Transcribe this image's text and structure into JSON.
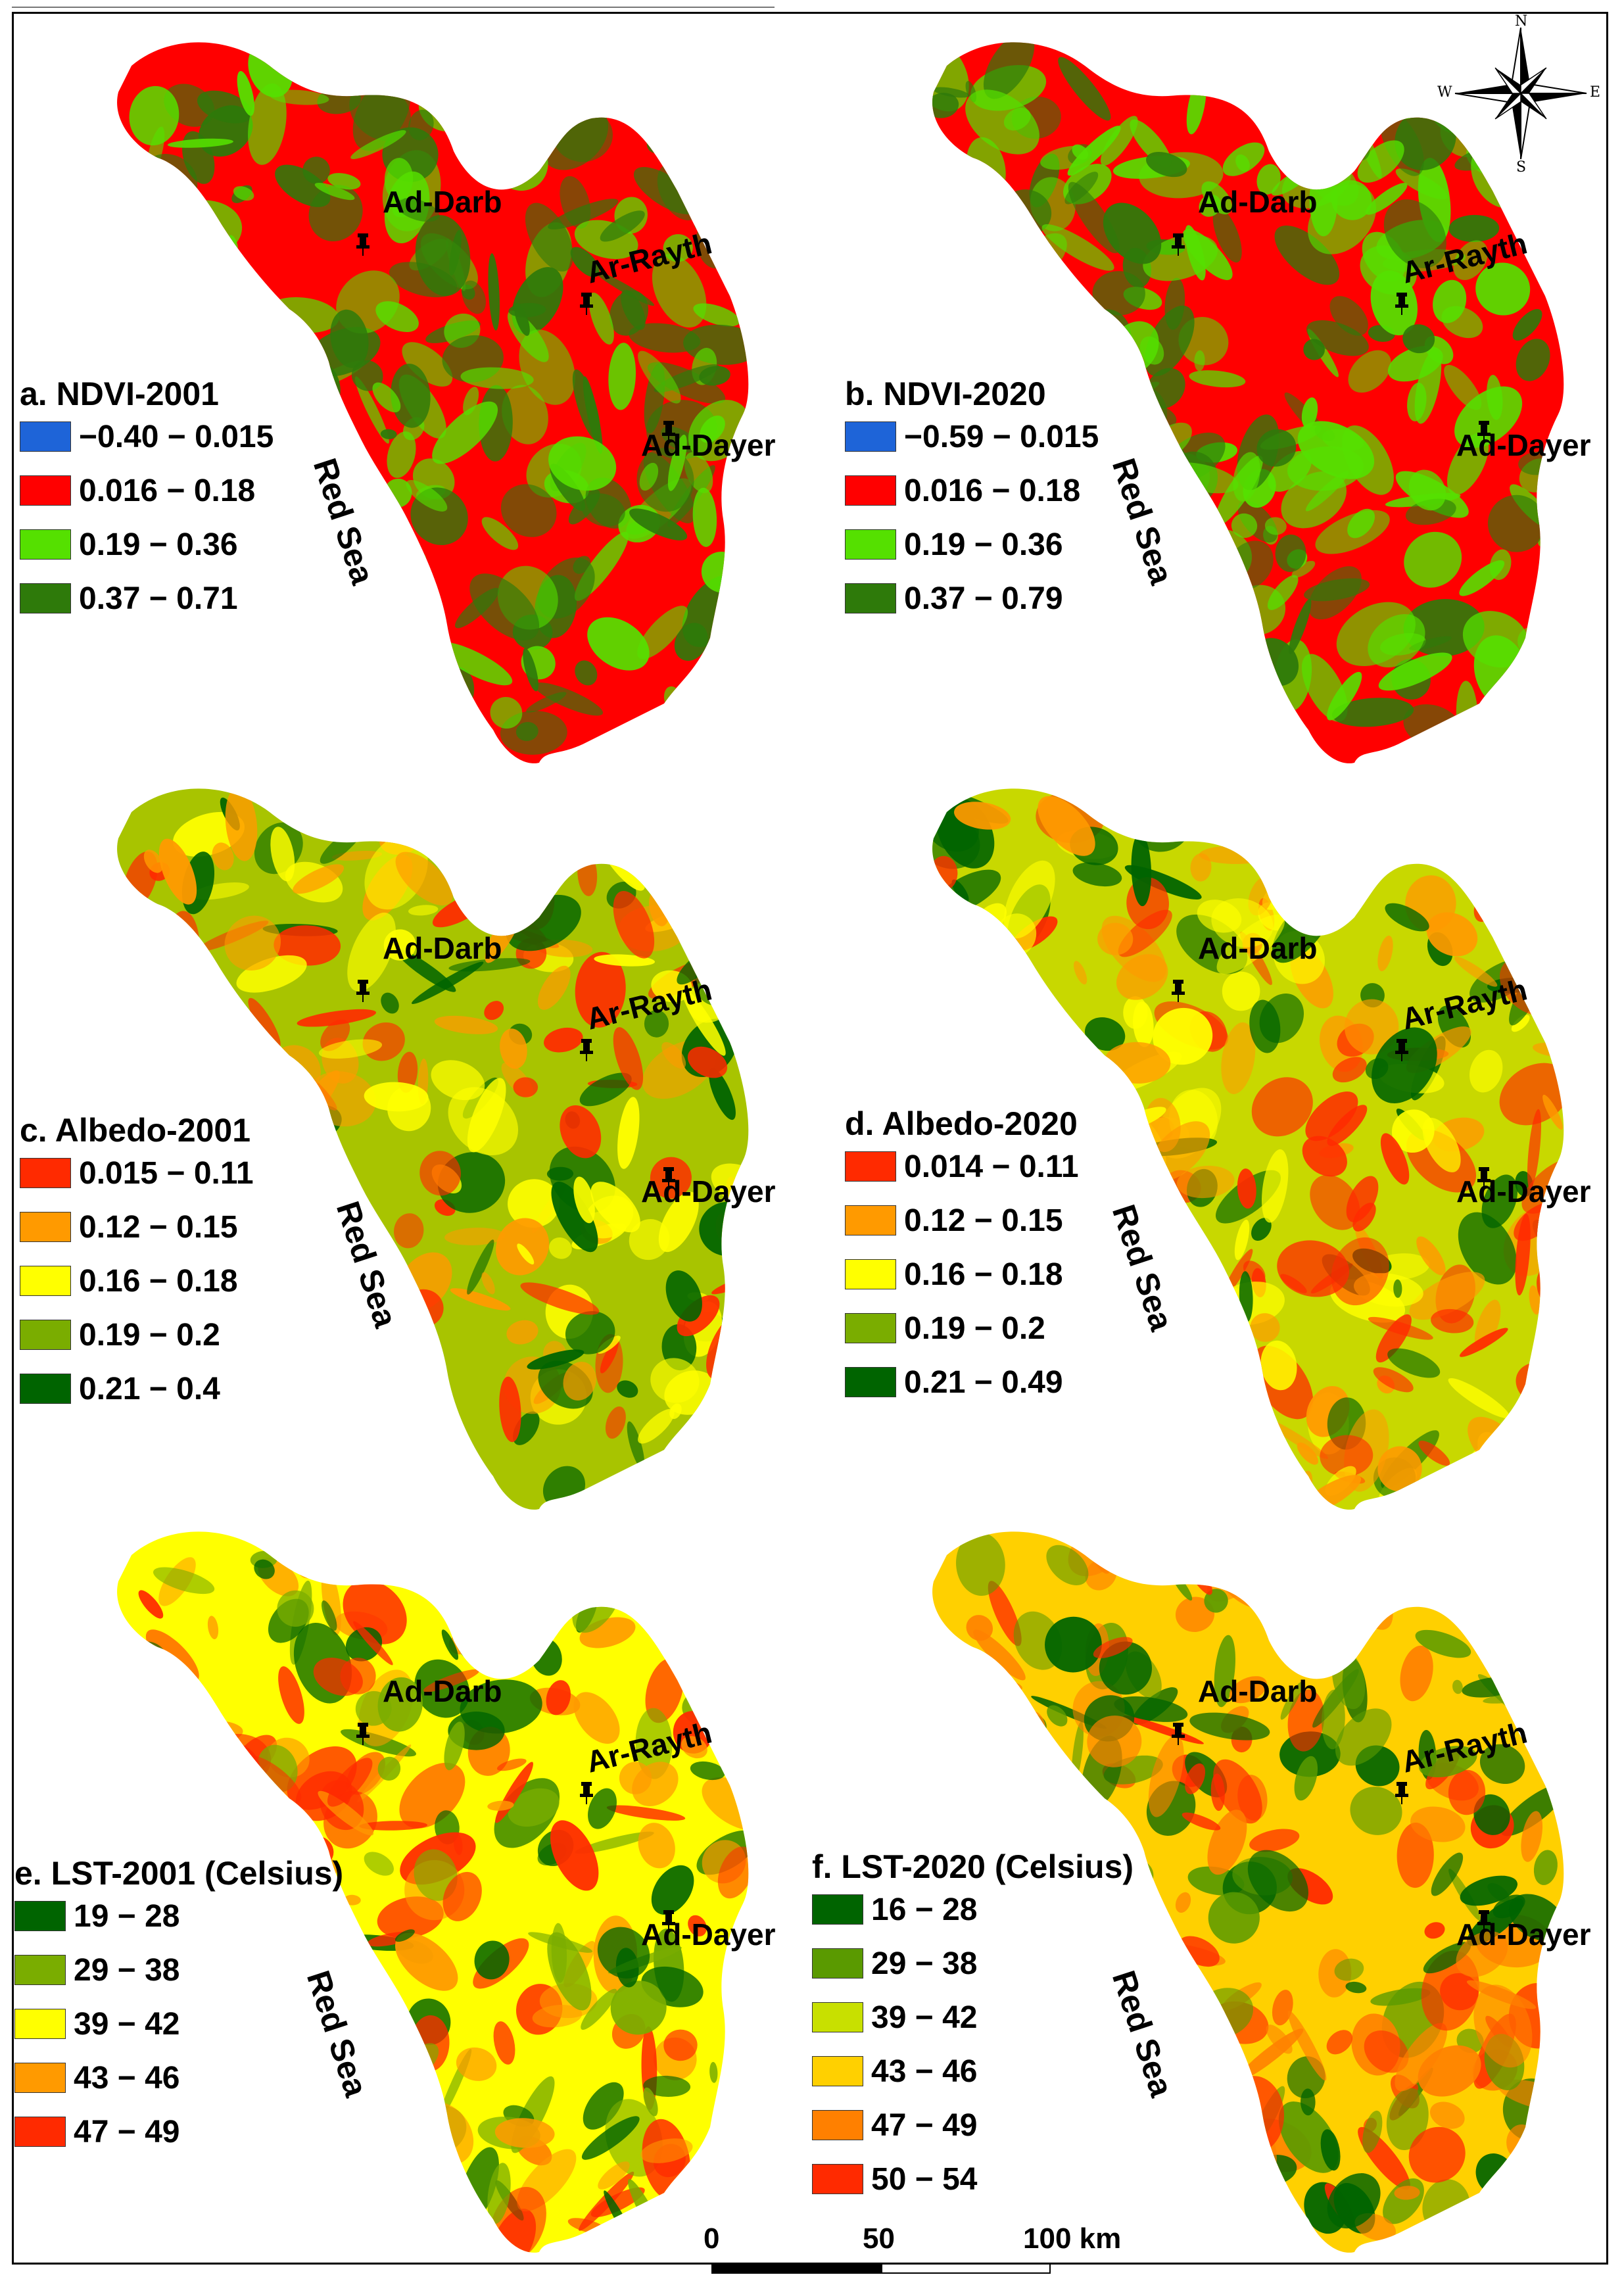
{
  "panels": [
    {
      "id": "a",
      "title": "a. NDVI-2001",
      "legend": [
        {
          "label": "−0.40 − 0.015",
          "color": "#1e64d8"
        },
        {
          "label": "0.016 − 0.18",
          "color": "#ff0000"
        },
        {
          "label": "0.19 − 0.36",
          "color": "#55e000"
        },
        {
          "label": "0.37 − 0.71",
          "color": "#2e7a0a"
        }
      ],
      "base_color": "#ff0000",
      "patch_colors": [
        "#55e000",
        "#2e7a0a"
      ],
      "places": [
        "Ad-Darb",
        "Ar-Rayth",
        "Ad-Dayer"
      ],
      "sea": "Red Sea"
    },
    {
      "id": "b",
      "title": "b. NDVI-2020",
      "legend": [
        {
          "label": "−0.59 − 0.015",
          "color": "#1e64d8"
        },
        {
          "label": "0.016 − 0.18",
          "color": "#ff0000"
        },
        {
          "label": "0.19 − 0.36",
          "color": "#55e000"
        },
        {
          "label": "0.37 − 0.79",
          "color": "#2e7a0a"
        }
      ],
      "base_color": "#ff0000",
      "patch_colors": [
        "#55e000",
        "#2e7a0a",
        "#55e000"
      ],
      "places": [
        "Ad-Darb",
        "Ar-Rayth",
        "Ad-Dayer"
      ],
      "sea": "Red Sea"
    },
    {
      "id": "c",
      "title": "c. Albedo-2001",
      "legend": [
        {
          "label": "0.015 − 0.11",
          "color": "#ff2a00"
        },
        {
          "label": "0.12 − 0.15",
          "color": "#ff9a00"
        },
        {
          "label": "0.16 − 0.18",
          "color": "#ffff00"
        },
        {
          "label": "0.19 − 0.2",
          "color": "#7aad00"
        },
        {
          "label": "0.21 − 0.4",
          "color": "#006400"
        }
      ],
      "base_color": "#a8c400",
      "patch_colors": [
        "#006400",
        "#ffff00",
        "#ff9a00",
        "#ff2a00"
      ],
      "places": [
        "Ad-Darb",
        "Ar-Rayth",
        "Ad-Dayer"
      ],
      "sea": "Red Sea"
    },
    {
      "id": "d",
      "title": "d. Albedo-2020",
      "legend": [
        {
          "label": "0.014 − 0.11",
          "color": "#ff2a00"
        },
        {
          "label": "0.12 − 0.15",
          "color": "#ff9a00"
        },
        {
          "label": "0.16 − 0.18",
          "color": "#ffff00"
        },
        {
          "label": "0.19 − 0.2",
          "color": "#7aad00"
        },
        {
          "label": "0.21 − 0.49",
          "color": "#006400"
        }
      ],
      "base_color": "#c8d800",
      "patch_colors": [
        "#ff2a00",
        "#ff9a00",
        "#006400",
        "#ffff00"
      ],
      "places": [
        "Ad-Darb",
        "Ar-Rayth",
        "Ad-Dayer"
      ],
      "sea": "Red Sea"
    },
    {
      "id": "e",
      "title": "e. LST-2001 (Celsius)",
      "legend": [
        {
          "label": "19 − 28",
          "color": "#006400"
        },
        {
          "label": "29 − 38",
          "color": "#7aad00"
        },
        {
          "label": "39 − 42",
          "color": "#ffff00"
        },
        {
          "label": "43 − 46",
          "color": "#ff9a00"
        },
        {
          "label": "47 − 49",
          "color": "#ff2a00"
        }
      ],
      "base_color": "#ffff00",
      "patch_colors": [
        "#ff9a00",
        "#ff2a00",
        "#7aad00",
        "#006400"
      ],
      "places": [
        "Ad-Darb",
        "Ar-Rayth",
        "Ad-Dayer"
      ],
      "sea": "Red Sea"
    },
    {
      "id": "f",
      "title": "f. LST-2020 (Celsius)",
      "legend": [
        {
          "label": "16 − 28",
          "color": "#006400"
        },
        {
          "label": "29 − 38",
          "color": "#5a9a00"
        },
        {
          "label": "39 − 42",
          "color": "#c8e000"
        },
        {
          "label": "43 − 46",
          "color": "#ffd000"
        },
        {
          "label": "47 − 49",
          "color": "#ff8000"
        },
        {
          "label": "50 − 54",
          "color": "#ff2a00"
        }
      ],
      "base_color": "#ffd000",
      "patch_colors": [
        "#ff8000",
        "#ff2a00",
        "#5a9a00",
        "#006400"
      ],
      "places": [
        "Ad-Darb",
        "Ar-Rayth",
        "Ad-Dayer"
      ],
      "sea": "Red Sea"
    }
  ],
  "scale_bar": {
    "labels": [
      "0",
      "50",
      "100 km"
    ]
  },
  "compass": {
    "n": "N",
    "s": "S",
    "e": "E",
    "w": "W"
  }
}
